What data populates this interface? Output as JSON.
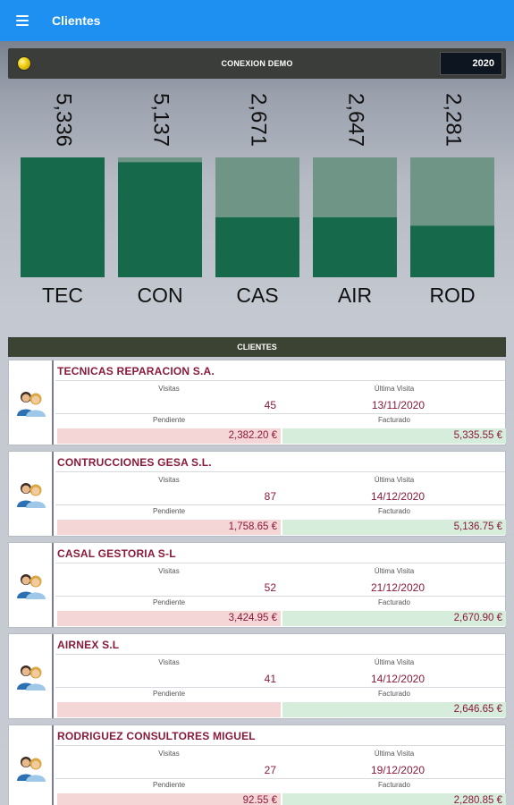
{
  "appbar": {
    "title": "Clientes",
    "menu_icon": "hamburger-menu-icon"
  },
  "connection": {
    "label": "CONEXION DEMO",
    "year": "2020",
    "status_color": "#f0cf14"
  },
  "chart_data": {
    "type": "bar",
    "categories": [
      "TEC",
      "CON",
      "CAS",
      "AIR",
      "ROD"
    ],
    "values": [
      5336,
      5137,
      2671,
      2647,
      2281
    ],
    "value_labels": [
      "5,336",
      "5,137",
      "2,671",
      "2,647",
      "2,281"
    ],
    "fill_fraction": [
      1.0,
      0.96,
      0.5,
      0.5,
      0.43
    ],
    "colors": {
      "fill": "#166a4b",
      "track": "#6e9585"
    },
    "title": "",
    "xlabel": "",
    "ylabel": ""
  },
  "section": {
    "title": "CLIENTES"
  },
  "labels": {
    "visitas": "Visitas",
    "ultima_visita": "Última Visita",
    "pendiente": "Pendiente",
    "facturado": "Facturado"
  },
  "clients": [
    {
      "name": "TECNICAS REPARACION S.A.",
      "visits": "45",
      "last_visit": "13/11/2020",
      "pending": "2,382.20 €",
      "invoiced": "5,335.55 €"
    },
    {
      "name": "CONTRUCCIONES GESA S.L.",
      "visits": "87",
      "last_visit": "14/12/2020",
      "pending": "1,758.65 €",
      "invoiced": "5,136.75 €"
    },
    {
      "name": "CASAL GESTORIA S-L",
      "visits": "52",
      "last_visit": "21/12/2020",
      "pending": "3,424.95 €",
      "invoiced": "2,670.90 €"
    },
    {
      "name": "AIRNEX S.L",
      "visits": "41",
      "last_visit": "14/12/2020",
      "pending": "",
      "invoiced": "2,646.65 €"
    },
    {
      "name": "RODRIGUEZ CONSULTORES MIGUEL",
      "visits": "27",
      "last_visit": "19/12/2020",
      "pending": "92.55 €",
      "invoiced": "2,280.85 €"
    }
  ]
}
